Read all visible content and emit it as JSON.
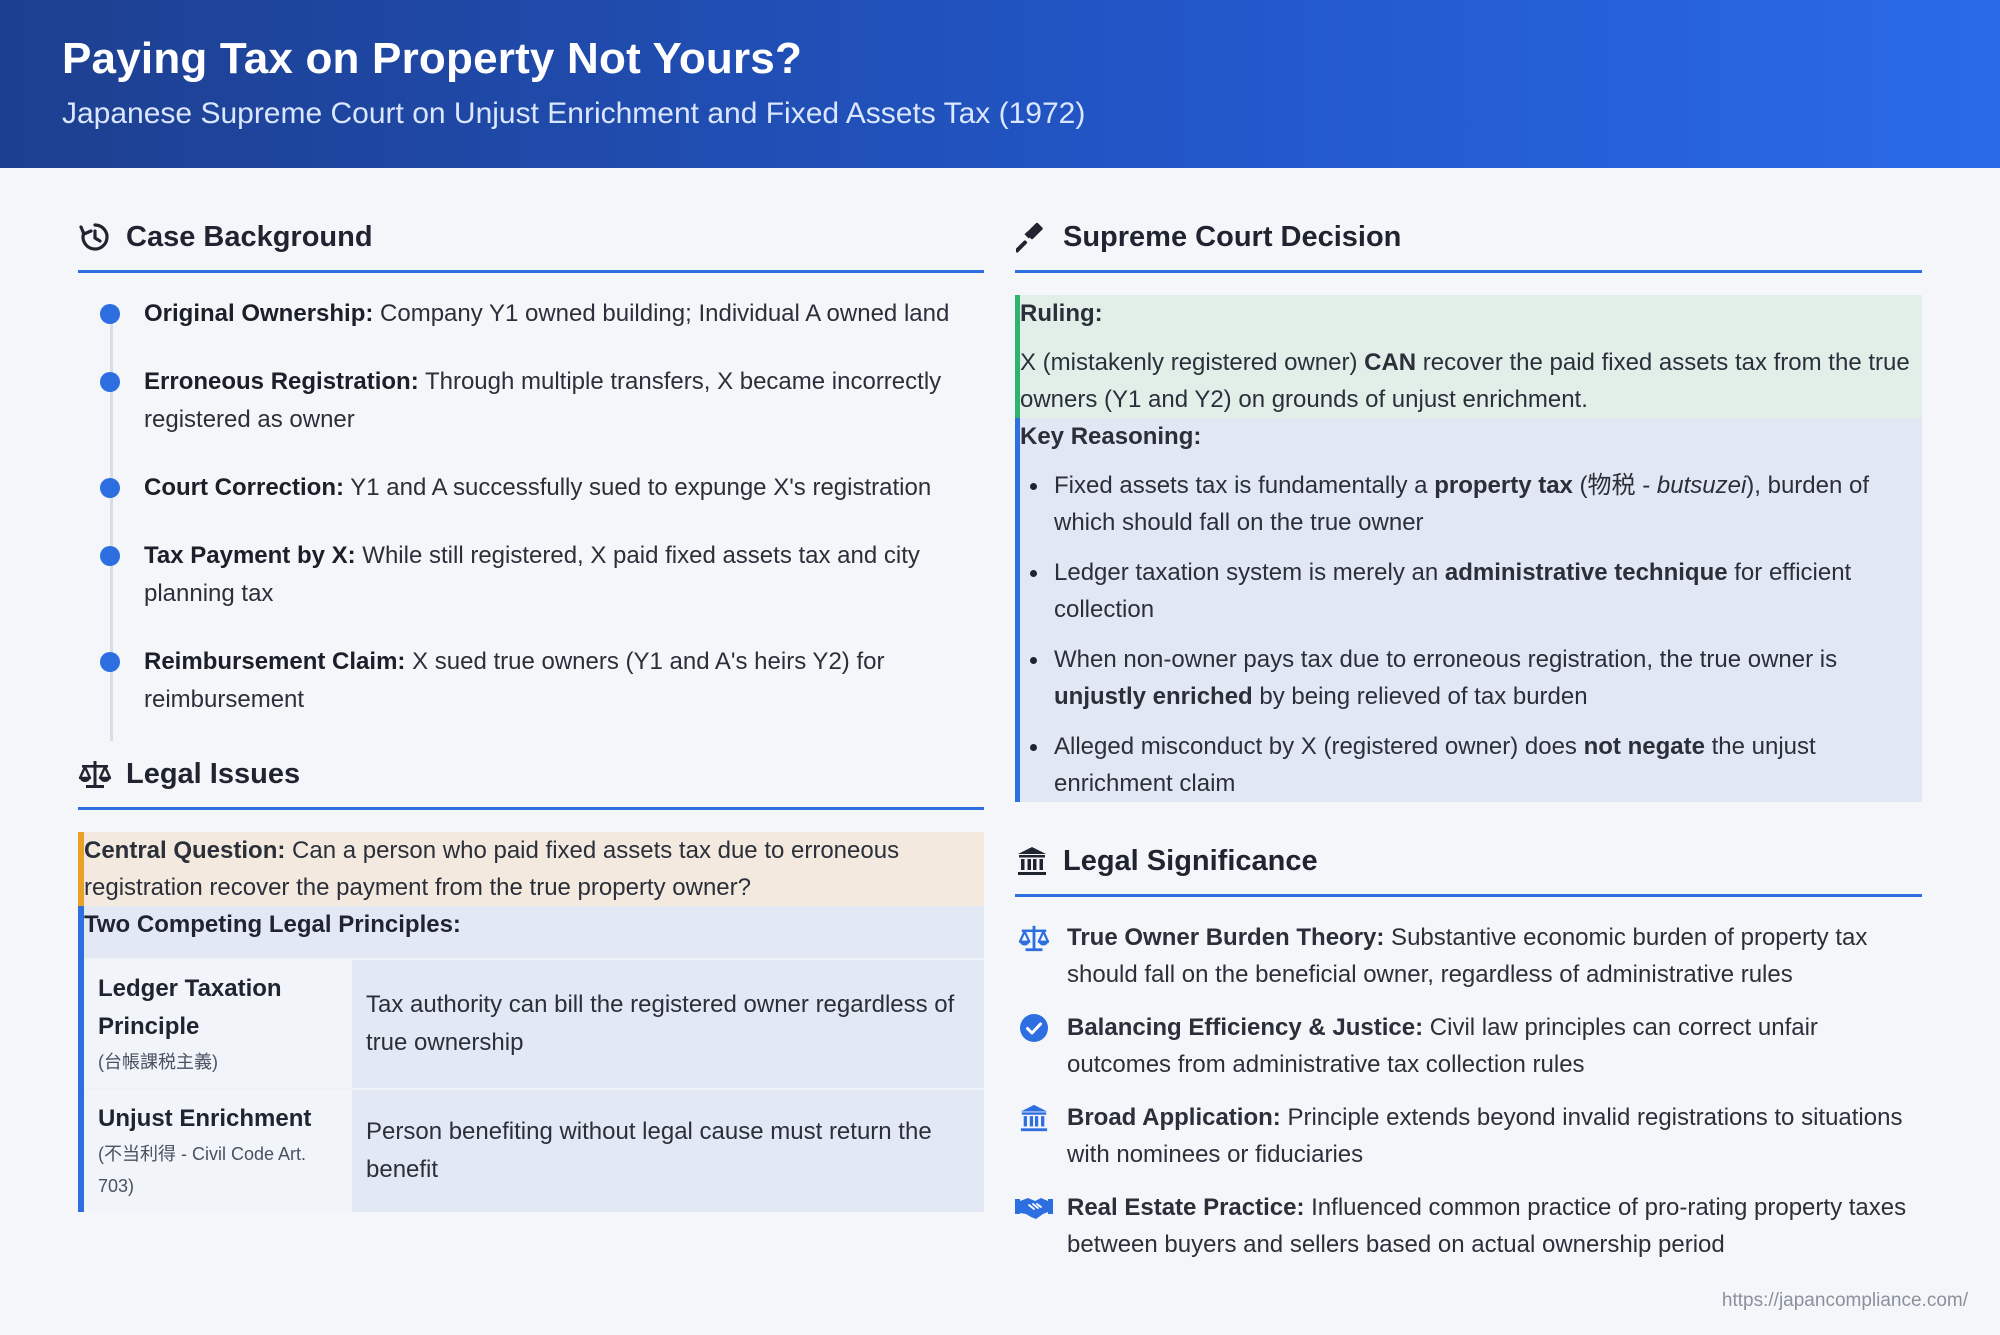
{
  "header": {
    "title": "Paying Tax on Property Not Yours?",
    "subtitle": "Japanese Supreme Court on Unjust Enrichment and Fixed Assets Tax (1972)"
  },
  "background": {
    "title": "Case Background",
    "icon": "history-icon",
    "items": [
      {
        "label": "Original Ownership:",
        "text": " Company Y1 owned building; Individual A owned land"
      },
      {
        "label": "Erroneous Registration:",
        "text": " Through multiple transfers, X became incorrectly registered as owner"
      },
      {
        "label": "Court Correction:",
        "text": " Y1 and A successfully sued to expunge X's registration"
      },
      {
        "label": "Tax Payment by X:",
        "text": " While still registered, X paid fixed assets tax and city planning tax"
      },
      {
        "label": "Reimbursement Claim:",
        "text": " X sued true owners (Y1 and A's heirs Y2) for reimbursement"
      }
    ]
  },
  "issues": {
    "title": "Legal Issues",
    "icon": "scales-icon",
    "central_label": "Central Question:",
    "central_text": " Can a person who paid fixed assets tax due to erroneous registration recover the payment from the true property owner?",
    "principles_title": "Two Competing Legal Principles:",
    "principles": [
      {
        "name": "Ledger Taxation Principle",
        "sub": "(台帳課税主義)",
        "desc": "Tax authority can bill the registered owner regardless of true ownership"
      },
      {
        "name": "Unjust Enrichment",
        "sub": "(不当利得 - Civil Code Art. 703)",
        "desc": "Person benefiting without legal cause must return the benefit"
      }
    ]
  },
  "decision": {
    "title": "Supreme Court Decision",
    "icon": "gavel-icon",
    "ruling_label": "Ruling:",
    "ruling_pre": "X (mistakenly registered owner) ",
    "ruling_bold": "CAN",
    "ruling_post": " recover the paid fixed assets tax from the true owners (Y1 and Y2) on grounds of unjust enrichment.",
    "reasoning_label": "Key Reasoning:",
    "reasoning": [
      {
        "pre": "Fixed assets tax is fundamentally a ",
        "bold": "property tax",
        "mid": " (物税 - ",
        "italic": "butsuzei",
        "post": "), burden of which should fall on the true owner"
      },
      {
        "pre": "Ledger taxation system is merely an ",
        "bold": "administrative technique",
        "mid": "",
        "italic": "",
        "post": " for efficient collection"
      },
      {
        "pre": "When non-owner pays tax due to erroneous registration, the true owner is ",
        "bold": "unjustly enriched",
        "mid": "",
        "italic": "",
        "post": " by being relieved of tax burden"
      },
      {
        "pre": "Alleged misconduct by X (registered owner) does ",
        "bold": "not negate",
        "mid": "",
        "italic": "",
        "post": " the unjust enrichment claim"
      }
    ]
  },
  "significance": {
    "title": "Legal Significance",
    "icon": "landmark-icon",
    "items": [
      {
        "icon": "scales-icon",
        "label": "True Owner Burden Theory:",
        "text": " Substantive economic burden of property tax should fall on the beneficial owner, regardless of administrative rules"
      },
      {
        "icon": "check-circle-icon",
        "label": "Balancing Efficiency & Justice:",
        "text": " Civil law principles can correct unfair outcomes from administrative tax collection rules"
      },
      {
        "icon": "landmark-icon",
        "label": "Broad Application:",
        "text": " Principle extends beyond invalid registrations to situations with nominees or fiduciaries"
      },
      {
        "icon": "handshake-icon",
        "label": "Real Estate Practice:",
        "text": " Influenced common practice of pro-rating property taxes between buyers and sellers based on actual ownership period"
      }
    ]
  },
  "footer": {
    "url": "https://japancompliance.com/"
  },
  "colors": {
    "accent": "#2d6ee0",
    "ruling": "#2fb36e",
    "question": "#e9a12a"
  }
}
